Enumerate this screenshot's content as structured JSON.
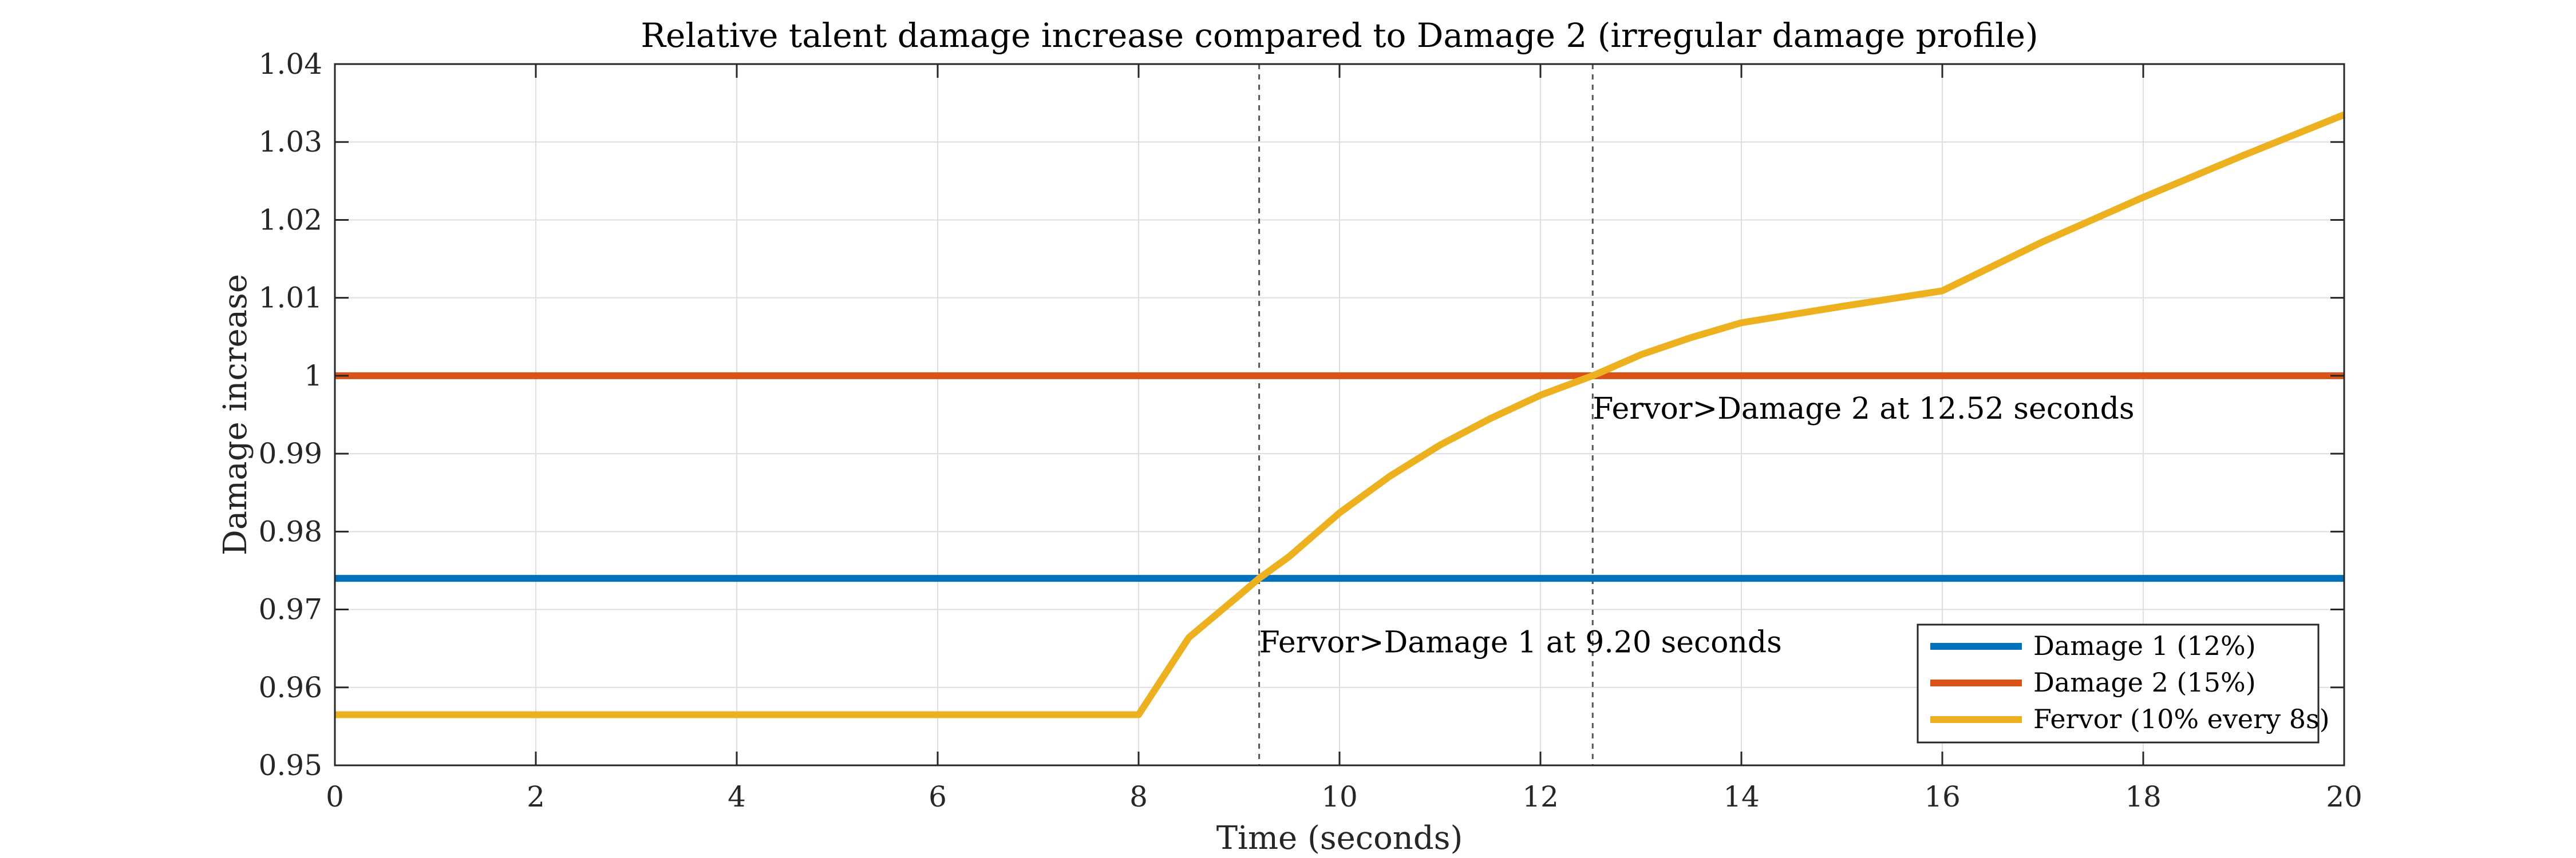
{
  "chart_data": {
    "type": "line",
    "title": "Relative talent damage increase compared to Damage 2 (irregular damage profile)",
    "xlabel": "Time (seconds)",
    "ylabel": "Damage increase",
    "xlim": [
      0,
      20
    ],
    "ylim": [
      0.95,
      1.04
    ],
    "xticks": [
      0,
      2,
      4,
      6,
      8,
      10,
      12,
      14,
      16,
      18,
      20
    ],
    "yticks": [
      0.95,
      0.96,
      0.97,
      0.98,
      0.99,
      1,
      1.01,
      1.02,
      1.03,
      1.04
    ],
    "ytick_labels": [
      "0.95",
      "0.96",
      "0.97",
      "0.98",
      "0.99",
      "1",
      "1.01",
      "1.02",
      "1.03",
      "1.04"
    ],
    "grid": true,
    "legend_position": "bottom-right",
    "series": [
      {
        "name": "Damage 1 (12%)",
        "color": "#0072BD",
        "x": [
          0,
          20
        ],
        "y": [
          0.974,
          0.974
        ]
      },
      {
        "name": "Damage 2 (15%)",
        "color": "#D95319",
        "x": [
          0,
          20
        ],
        "y": [
          1.0,
          1.0
        ]
      },
      {
        "name": "Fervor (10% every 8s)",
        "color": "#EDB120",
        "x": [
          0,
          8,
          8.5,
          9,
          9.2,
          9.5,
          10,
          10.5,
          11,
          11.5,
          12,
          12.52,
          13,
          13.5,
          14,
          15,
          16,
          17,
          18,
          19,
          20
        ],
        "y": [
          0.9565,
          0.9565,
          0.9664,
          0.9718,
          0.974,
          0.9768,
          0.9824,
          0.9871,
          0.9911,
          0.9945,
          0.9975,
          1.0,
          1.0027,
          1.0049,
          1.0068,
          1.0089,
          1.0109,
          1.0172,
          1.0229,
          1.0283,
          1.0335
        ]
      }
    ],
    "vertical_lines": [
      9.2,
      12.52
    ],
    "annotations": [
      {
        "text": "Fervor>Damage 1 at 9.20 seconds",
        "x": 9.2,
        "y": 0.9645
      },
      {
        "text": "Fervor>Damage 2 at 12.52 seconds",
        "x": 12.52,
        "y": 0.9945
      }
    ]
  }
}
